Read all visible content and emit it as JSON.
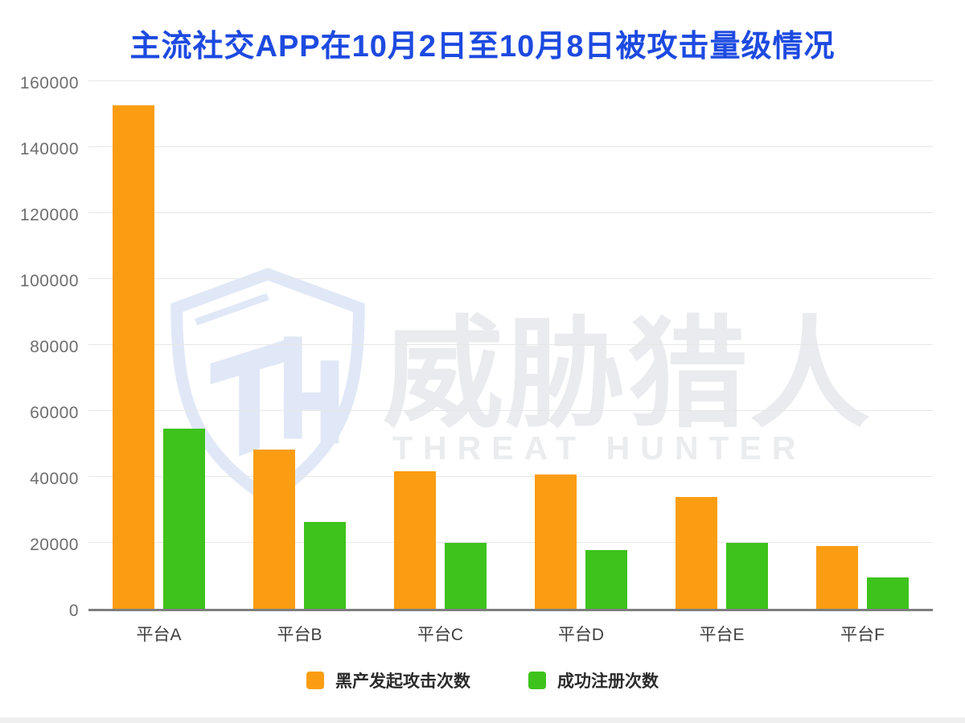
{
  "title": {
    "text": "主流社交APP在10月2日至10月8日被攻击量级情况",
    "color": "#1D4AE0"
  },
  "watermark": {
    "cn": "威胁猎人",
    "en": "THREAT HUNTER",
    "shield_color": "#d9e2f5"
  },
  "chart_data": {
    "type": "bar",
    "title": "主流社交APP在10月2日至10月8日被攻击量级情况",
    "categories": [
      "平台A",
      "平台B",
      "平台C",
      "平台D",
      "平台E",
      "平台F"
    ],
    "series": [
      {
        "name": "黑产发起攻击次数",
        "color": "#FA9D12",
        "values": [
          153500,
          48500,
          42000,
          41000,
          34000,
          19000
        ]
      },
      {
        "name": "成功注册次数",
        "color": "#3EC21C",
        "values": [
          55000,
          26500,
          20000,
          18000,
          20000,
          9500
        ]
      }
    ],
    "xlabel": "",
    "ylabel": "",
    "ylim": [
      0,
      160000
    ],
    "ytick_step": 20000,
    "yticks": [
      0,
      20000,
      40000,
      60000,
      80000,
      100000,
      120000,
      140000,
      160000
    ],
    "grid": true,
    "legend_position": "bottom"
  }
}
